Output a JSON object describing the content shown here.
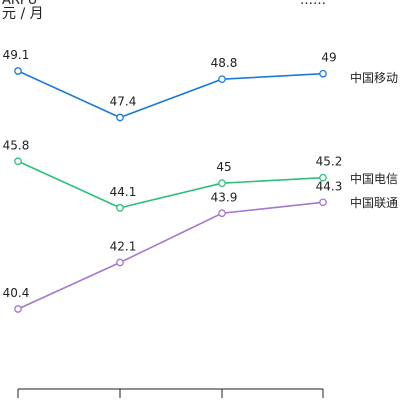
{
  "chart_data": {
    "type": "line",
    "title": "",
    "subtitle_visible_fragment": "元 / 月",
    "top_left_cut_text": "ARPU",
    "top_right_cut_text": "……",
    "categories": [
      "",
      "",
      "",
      ""
    ],
    "ylim": [
      38,
      51
    ],
    "grid": false,
    "legend": "right-inline",
    "series": [
      {
        "name": "中国移动",
        "color": "#1f7ad6",
        "values": [
          49.1,
          47.4,
          48.8,
          49.0
        ]
      },
      {
        "name": "中国电信",
        "color": "#2fbf7a",
        "values": [
          45.8,
          44.1,
          45.0,
          45.2
        ]
      },
      {
        "name": "中国联通",
        "color": "#a577d0",
        "values": [
          40.4,
          42.1,
          43.9,
          44.3
        ]
      }
    ]
  }
}
